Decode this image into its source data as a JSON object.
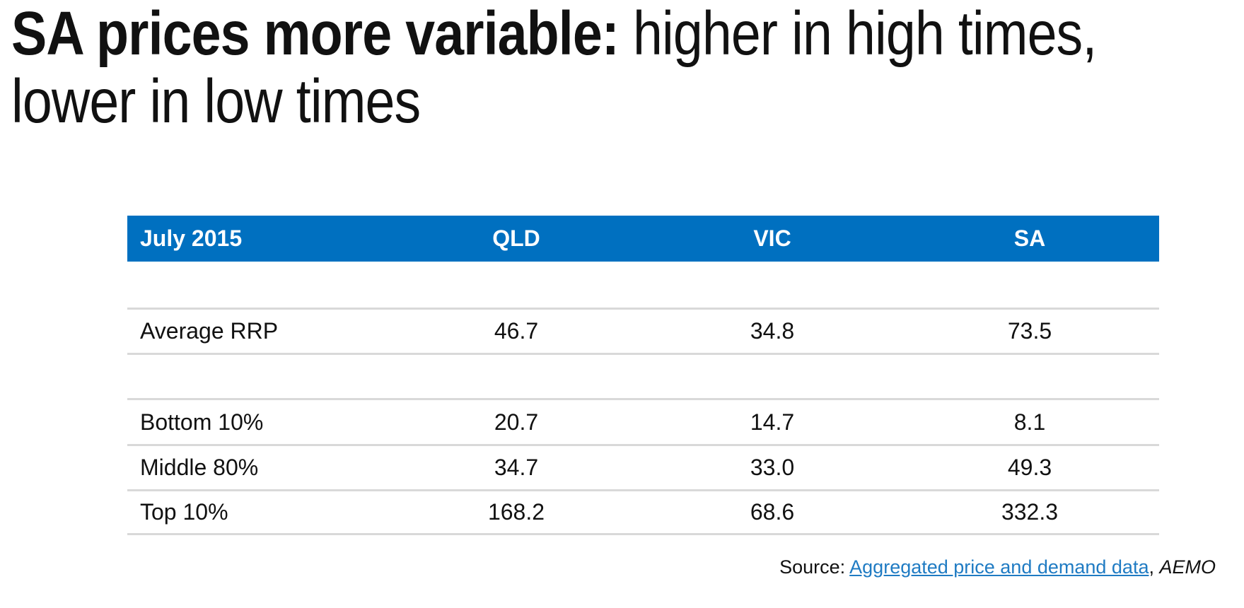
{
  "title": {
    "emphasis": "SA prices more variable:",
    "rest_line1": " higher in high times,",
    "line2": "lower in low times"
  },
  "table": {
    "header": {
      "period": "July 2015",
      "columns": [
        "QLD",
        "VIC",
        "SA"
      ]
    },
    "rows": [
      {
        "label": "Average RRP",
        "values": [
          "46.7",
          "34.8",
          "73.5"
        ]
      },
      {
        "label": "Bottom 10%",
        "values": [
          "20.7",
          "14.7",
          "8.1"
        ]
      },
      {
        "label": "Middle 80%",
        "values": [
          "34.7",
          "33.0",
          "49.3"
        ]
      },
      {
        "label": "Top 10%",
        "values": [
          "168.2",
          "68.6",
          "332.3"
        ]
      }
    ]
  },
  "source": {
    "prefix": "Source: ",
    "link_text": "Aggregated price and demand data",
    "suffix": ", ",
    "attribution": "AEMO"
  },
  "colors": {
    "header_bg": "#0070C0",
    "header_text": "#FFFFFF",
    "body_text": "#111111",
    "row_separator": "#D9D9D9",
    "link": "#1F7BC3"
  },
  "chart_data": {
    "type": "table",
    "title": "July 2015",
    "columns": [
      "QLD",
      "VIC",
      "SA"
    ],
    "row_labels": [
      "Average RRP",
      "Bottom 10%",
      "Middle 80%",
      "Top 10%"
    ],
    "series": [
      {
        "name": "QLD",
        "values": [
          46.7,
          20.7,
          34.7,
          168.2
        ]
      },
      {
        "name": "VIC",
        "values": [
          34.8,
          14.7,
          33.0,
          68.6
        ]
      },
      {
        "name": "SA",
        "values": [
          73.5,
          8.1,
          49.3,
          332.3
        ]
      }
    ]
  }
}
